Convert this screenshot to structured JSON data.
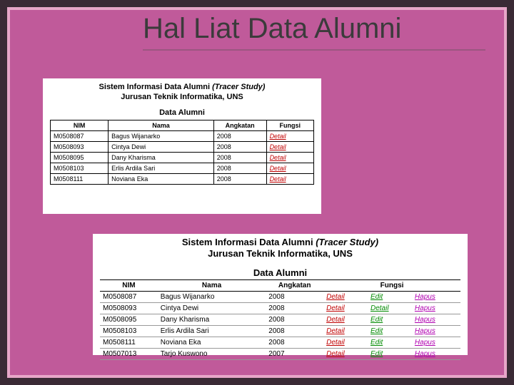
{
  "colors": {
    "outer_border": "#3a2a35",
    "inner_border": "#e7a6c8",
    "slide_bg": "#c05a9a",
    "panel_bg": "#ffffff",
    "title_text": "#3b3b3b",
    "link_detail": "#c00000",
    "link_edit": "#008a00",
    "link_hapus": "#b000b0"
  },
  "title": "Hal Liat Data Alumni",
  "panel1": {
    "heading_line1": "Sistem Informasi Data Alumni",
    "heading_line2": "Jurusan Teknik Informatika, UNS",
    "tracer": "(Tracer Study)",
    "subheading": "Data Alumni",
    "columns": [
      "NIM",
      "Nama",
      "Angkatan",
      "Fungsi"
    ],
    "rows": [
      {
        "nim": "M0508087",
        "nama": "Bagus Wijanarko",
        "angkatan": "2008",
        "fungsi": "Detail"
      },
      {
        "nim": "M0508093",
        "nama": "Cintya Dewi",
        "angkatan": "2008",
        "fungsi": "Detail"
      },
      {
        "nim": "M0508095",
        "nama": "Dany Kharisma",
        "angkatan": "2008",
        "fungsi": "Detail"
      },
      {
        "nim": "M0508103",
        "nama": "Erlis Ardila Sari",
        "angkatan": "2008",
        "fungsi": "Detail"
      },
      {
        "nim": "M0508111",
        "nama": "Noviana Eka",
        "angkatan": "2008",
        "fungsi": "Detail"
      }
    ]
  },
  "panel2": {
    "heading_line1": "Sistem Informasi Data Alumni",
    "heading_line2": "Jurusan Teknik Informatika, UNS",
    "tracer": "(Tracer Study)",
    "subheading": "Data Alumni",
    "columns": [
      "NIM",
      "Nama",
      "Angkatan",
      "Fungsi"
    ],
    "rows": [
      {
        "nim": "M0508087",
        "nama": "Bagus Wijanarko",
        "angkatan": "2008",
        "f1": "Detail",
        "f2": "Edit",
        "f3": "Hapus"
      },
      {
        "nim": "M0508093",
        "nama": "Cintya Dewi",
        "angkatan": "2008",
        "f1": "Detail",
        "f2": "Detail",
        "f3": "Hapus"
      },
      {
        "nim": "M0508095",
        "nama": "Dany Kharisma",
        "angkatan": "2008",
        "f1": "Detail",
        "f2": "Edit",
        "f3": "Hapus"
      },
      {
        "nim": "M0508103",
        "nama": "Erlis Ardila Sari",
        "angkatan": "2008",
        "f1": "Detail",
        "f2": "Edit",
        "f3": "Hapus"
      },
      {
        "nim": "M0508111",
        "nama": "Noviana Eka",
        "angkatan": "2008",
        "f1": "Detail",
        "f2": "Edit",
        "f3": "Hapus"
      },
      {
        "nim": "M0507013",
        "nama": "Tarjo Kuswono",
        "angkatan": "2007",
        "f1": "Detail",
        "f2": "Edit",
        "f3": "Hapus"
      }
    ]
  }
}
